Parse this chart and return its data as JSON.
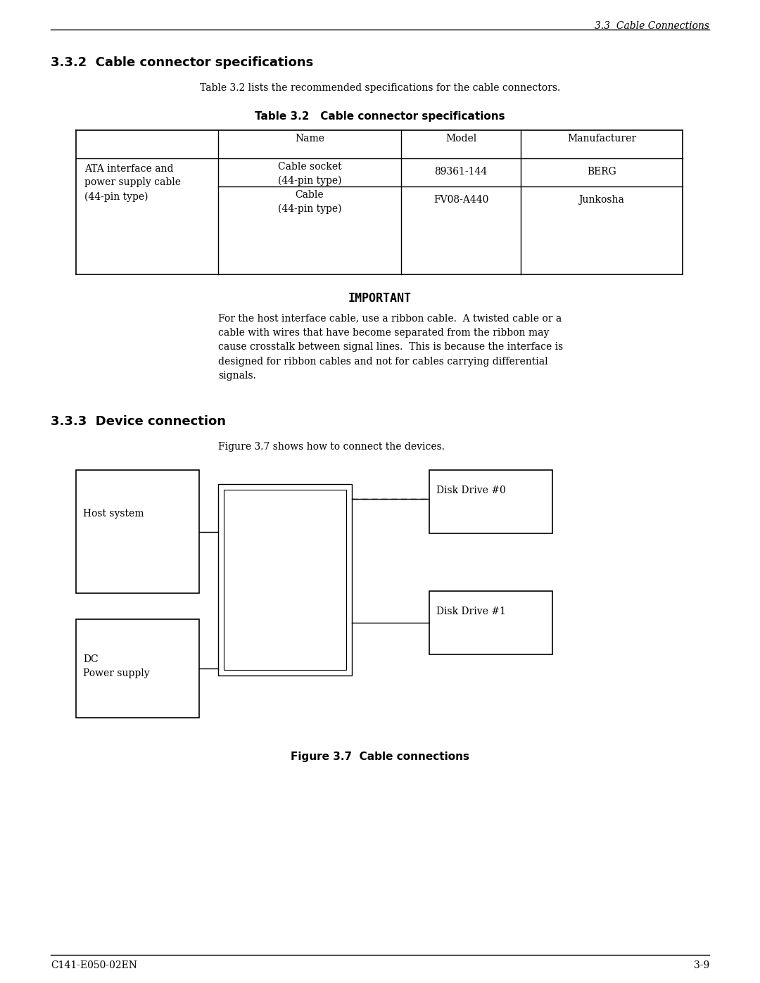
{
  "page_header": "3.3  Cable Connections",
  "section_title": "3.3.2  Cable connector specifications",
  "section_subtitle": "Table 3.2 lists the recommended specifications for the cable connectors.",
  "table_title": "Table 3.2   Cable connector specifications",
  "table_headers": [
    "",
    "Name",
    "Model",
    "Manufacturer"
  ],
  "table_row1_col0": "ATA interface and\npower supply cable\n(44-pin type)",
  "table_row1_col1": "Cable socket\n(44-pin type)",
  "table_row1_col2": "89361-144",
  "table_row1_col3": "BERG",
  "table_row2_col1": "Cable\n(44-pin type)",
  "table_row2_col2": "FV08-A440",
  "table_row2_col3": "Junkosha",
  "important_title": "IMPORTANT",
  "important_text": "For the host interface cable, use a ribbon cable.  A twisted cable or a\ncable with wires that have become separated from the ribbon may\ncause crosstalk between signal lines.  This is because the interface is\ndesigned for ribbon cables and not for cables carrying differential\nsignals.",
  "section2_title": "3.3.3  Device connection",
  "figure_intro": "Figure 3.7 shows how to connect the devices.",
  "figure_caption": "Figure 3.7  Cable connections",
  "page_footer_left": "C141-E050-02EN",
  "page_footer_right": "3-9",
  "bg_color": "#ffffff",
  "text_color": "#000000",
  "line_color": "#000000"
}
